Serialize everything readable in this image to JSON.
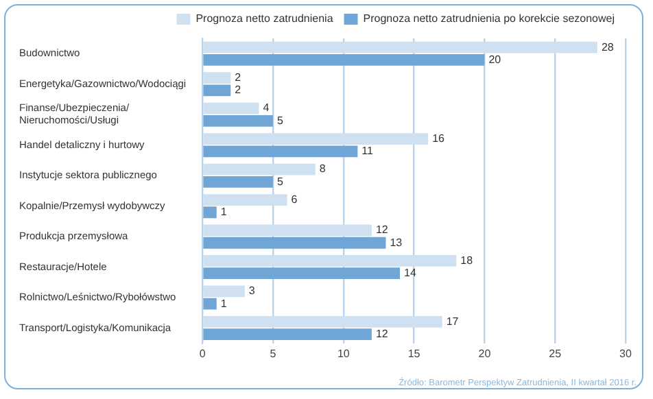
{
  "chart_data": {
    "type": "bar",
    "orientation": "horizontal",
    "categories": [
      "Budownictwo",
      "Energetyka/Gazownictwo/Wodociągi",
      "Finanse/Ubezpieczenia/\nNieruchomości/Usługi",
      "Handel detaliczny i hurtowy",
      "Instytucje sektora publicznego",
      "Kopalnie/Przemysł wydobywczy",
      "Produkcja przemysłowa",
      "Restauracje/Hotele",
      "Rolnictwo/Leśnictwo/Rybołówstwo",
      "Transport/Logistyka/Komunikacja"
    ],
    "series": [
      {
        "name": "Prognoza netto zatrudnienia",
        "color": "#cfe0f0",
        "values": [
          28,
          2,
          4,
          16,
          8,
          6,
          12,
          18,
          3,
          17
        ]
      },
      {
        "name": "Prognoza netto zatrudnienia po korekcie sezonowej",
        "color": "#6fa6d6",
        "values": [
          20,
          2,
          5,
          11,
          5,
          1,
          13,
          14,
          1,
          12
        ]
      }
    ],
    "xlim": [
      0,
      30
    ],
    "xticks": [
      0,
      5,
      10,
      15,
      20,
      25,
      30
    ],
    "grid": "x",
    "legend": "top",
    "data_labels": true,
    "annotations": [
      "Źródło: Barometr Perspektyw Zatrudnienia, II kwartał 2016 r."
    ]
  }
}
